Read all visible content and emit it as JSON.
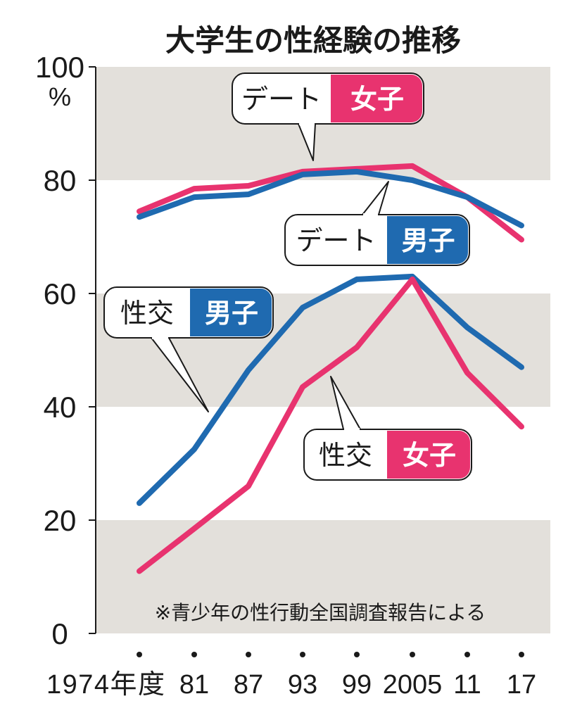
{
  "chart_data": {
    "type": "line",
    "title": "大学生の性経験の推移",
    "x_tick_labels": [
      "1974年度",
      "81",
      "87",
      "93",
      "99",
      "2005",
      "11",
      "17"
    ],
    "x": [
      1974,
      1981,
      1987,
      1993,
      1999,
      2005,
      2011,
      2017
    ],
    "ylim": [
      0,
      100
    ],
    "y_ticks": [
      "0",
      "20",
      "40",
      "60",
      "80",
      "100"
    ],
    "y_unit": "%",
    "grid": "alternating bands",
    "series": [
      {
        "name": "デート 女子",
        "group": "デート",
        "sex": "女子",
        "color": "#e8336f",
        "values": [
          74.5,
          78.5,
          79.0,
          81.5,
          82.0,
          82.5,
          77.0,
          69.5
        ]
      },
      {
        "name": "デート 男子",
        "group": "デート",
        "sex": "男子",
        "color": "#1f6ab0",
        "values": [
          73.5,
          77.0,
          77.5,
          81.0,
          81.5,
          80.0,
          77.0,
          72.0
        ]
      },
      {
        "name": "性交 男子",
        "group": "性交",
        "sex": "男子",
        "color": "#1f6ab0",
        "values": [
          23.0,
          32.5,
          46.5,
          57.5,
          62.5,
          63.0,
          54.0,
          47.0
        ]
      },
      {
        "name": "性交 女子",
        "group": "性交",
        "sex": "女子",
        "color": "#e8336f",
        "values": [
          11.0,
          18.5,
          26.0,
          43.5,
          50.5,
          62.5,
          46.0,
          36.5
        ]
      }
    ],
    "note": "※青少年の性行動全国調査報告による"
  }
}
